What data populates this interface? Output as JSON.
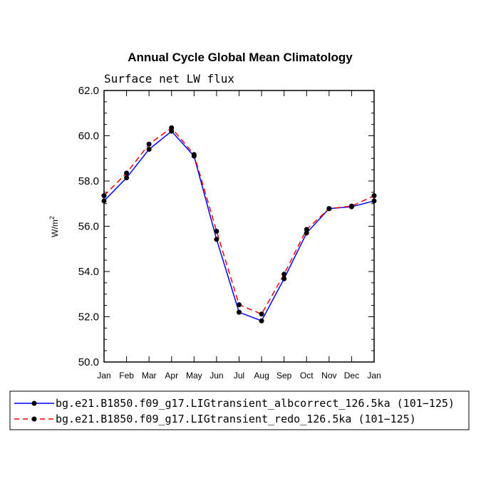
{
  "chart_data": {
    "type": "line",
    "title": "Annual Cycle Global Mean Climatology",
    "subtitle": "Surface net LW flux",
    "xlabel": "",
    "ylabel": "W/m",
    "ylabel_superscript": "2",
    "categories": [
      "Jan",
      "Feb",
      "Mar",
      "Apr",
      "May",
      "Jun",
      "Jul",
      "Aug",
      "Sep",
      "Oct",
      "Nov",
      "Dec",
      "Jan"
    ],
    "ylim": [
      50.0,
      62.0
    ],
    "yticks": [
      "50.0",
      "52.0",
      "54.0",
      "56.0",
      "58.0",
      "60.0",
      "62.0"
    ],
    "grid": false,
    "legend_position": "bottom",
    "series": [
      {
        "name": "bg.e21.B1850.f09_g17.LIGtransient_albcorrect_126.5ka (101−125)",
        "color": "#0000ff",
        "style": "solid",
        "values": [
          57.12,
          58.14,
          59.4,
          60.2,
          59.1,
          55.42,
          52.2,
          51.82,
          53.68,
          55.7,
          56.78,
          56.86,
          57.12
        ]
      },
      {
        "name": "bg.e21.B1850.f09_g17.LIGtransient_redo_126.5ka (101−125)",
        "color": "#ff0000",
        "style": "dashed",
        "values": [
          57.35,
          58.35,
          59.63,
          60.35,
          59.17,
          55.78,
          52.53,
          52.12,
          53.88,
          55.86,
          56.78,
          56.89,
          57.35
        ]
      }
    ]
  }
}
